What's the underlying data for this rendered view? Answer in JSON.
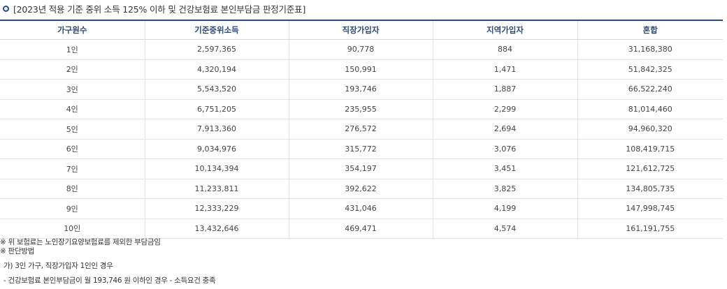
{
  "title": {
    "icon": "circle-outline-icon",
    "icon_color": "#1f4e8c",
    "text": "[2023년 적용 기준 중위 소득 125% 이하 및 건강보험료 본인부담금 판정기준표]"
  },
  "table": {
    "header_color": "#2a4a7b",
    "columns": [
      "가구원수",
      "기준중위소득",
      "직장가입자",
      "지역가입자",
      "혼합"
    ],
    "rows": [
      [
        "1인",
        "2,597,365",
        "90,778",
        "884",
        "31,168,380"
      ],
      [
        "2인",
        "4,320,194",
        "150,991",
        "1,471",
        "51,842,325"
      ],
      [
        "3인",
        "5,543,520",
        "193,746",
        "1,887",
        "66,522,240"
      ],
      [
        "4인",
        "6,751,205",
        "235,955",
        "2,299",
        "81,014,460"
      ],
      [
        "5인",
        "7,913,360",
        "276,572",
        "2,694",
        "94,960,320"
      ],
      [
        "6인",
        "9,034,976",
        "315,772",
        "3,076",
        "108,419,715"
      ],
      [
        "7인",
        "10,134,394",
        "354,197",
        "3,451",
        "121,612,725"
      ],
      [
        "8인",
        "11,233,811",
        "392,622",
        "3,825",
        "134,805,735"
      ],
      [
        "9인",
        "12,333,229",
        "431,046",
        "4,199",
        "147,998,745"
      ],
      [
        "10인",
        "13,432,646",
        "469,471",
        "4,574",
        "161,191,755"
      ]
    ]
  },
  "notes": {
    "note1": "※ 위 보험료는 노인장기요양보험료를 제외한 부담금임",
    "note2": "※ 판단방법",
    "example_title": "가) 3인 가구, 직장가입자 1인인 경우",
    "example_item": "- 건강보험료 본인부담금이 월 193,746 원 이하인 경우 - 소득요건 충족"
  }
}
